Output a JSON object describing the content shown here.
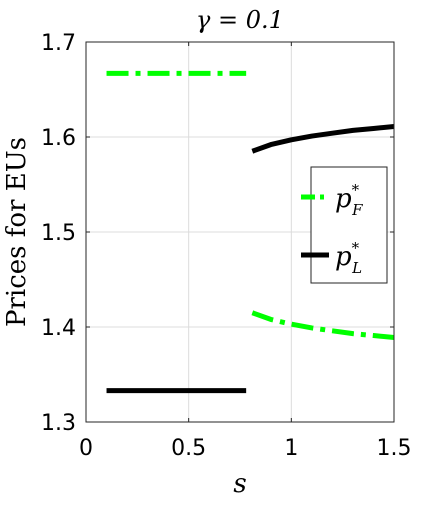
{
  "chart_data": {
    "type": "line",
    "title": "γ = 0.1",
    "xlabel": "s",
    "ylabel": "Prices for EUs",
    "xlim": [
      0,
      1.5
    ],
    "ylim": [
      1.3,
      1.7
    ],
    "xticks": [
      0,
      0.5,
      1,
      1.5
    ],
    "xtick_labels": [
      "0",
      "0.5",
      "1",
      "1.5"
    ],
    "yticks": [
      1.3,
      1.4,
      1.5,
      1.6,
      1.7
    ],
    "ytick_labels": [
      "1.3",
      "1.4",
      "1.5",
      "1.6",
      "1.7"
    ],
    "grid": true,
    "legend_position": "right",
    "series": [
      {
        "name": "p_F^*",
        "legend_base": "p",
        "legend_sub": "F",
        "legend_sup": "*",
        "color": "#00ff00",
        "style": "dash-dot",
        "segments": [
          {
            "x": [
              0.1,
              0.78
            ],
            "y": [
              1.667,
              1.667
            ]
          },
          {
            "x": [
              0.81,
              0.9,
              1.0,
              1.1,
              1.2,
              1.3,
              1.4,
              1.5
            ],
            "y": [
              1.415,
              1.408,
              1.403,
              1.399,
              1.396,
              1.393,
              1.391,
              1.389
            ]
          }
        ]
      },
      {
        "name": "p_L^*",
        "legend_base": "p",
        "legend_sub": "L",
        "legend_sup": "*",
        "color": "#000000",
        "style": "solid",
        "segments": [
          {
            "x": [
              0.1,
              0.78
            ],
            "y": [
              1.333,
              1.333
            ]
          },
          {
            "x": [
              0.81,
              0.9,
              1.0,
              1.1,
              1.2,
              1.3,
              1.4,
              1.5
            ],
            "y": [
              1.585,
              1.592,
              1.597,
              1.601,
              1.604,
              1.607,
              1.609,
              1.611
            ]
          }
        ]
      }
    ]
  }
}
